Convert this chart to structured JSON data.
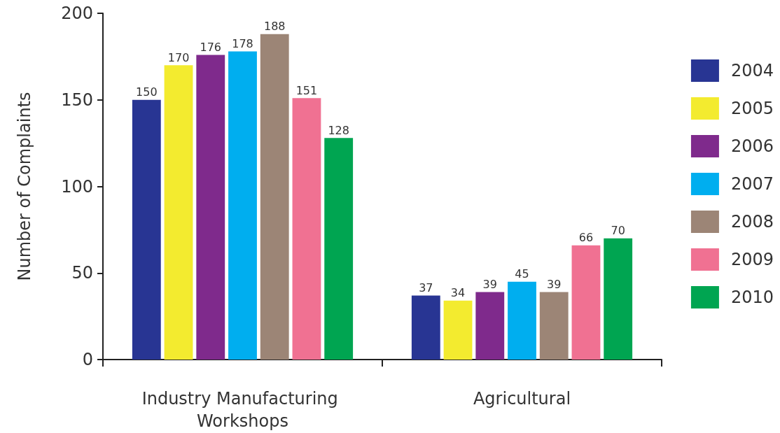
{
  "chart_data": {
    "type": "bar",
    "ylabel": "Number of Complaints",
    "categories": [
      "Industry Manufacturing Workshops",
      "Agricultural"
    ],
    "series": [
      {
        "name": "2004",
        "color": "#283593",
        "values": [
          150,
          37
        ]
      },
      {
        "name": "2005",
        "color": "#f3eb2f",
        "values": [
          170,
          34
        ]
      },
      {
        "name": "2006",
        "color": "#7f2a8c",
        "values": [
          176,
          39
        ]
      },
      {
        "name": "2007",
        "color": "#00aeef",
        "values": [
          178,
          45
        ]
      },
      {
        "name": "2008",
        "color": "#9c8576",
        "values": [
          188,
          39
        ]
      },
      {
        "name": "2009",
        "color": "#f07192",
        "values": [
          151,
          66
        ]
      },
      {
        "name": "2010",
        "color": "#00a551",
        "values": [
          128,
          70
        ]
      }
    ],
    "ylim": [
      0,
      200
    ],
    "yticks": [
      0,
      50,
      100,
      150,
      200
    ],
    "grid": false,
    "legend": "right",
    "data_labels": true
  }
}
